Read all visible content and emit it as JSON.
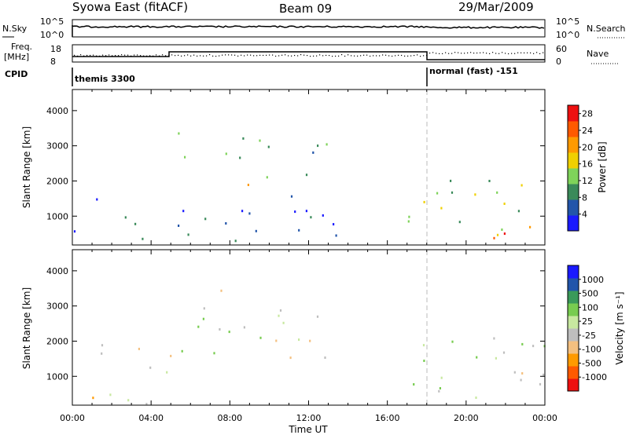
{
  "header": {
    "station": "Syowa East (fitACF)",
    "beam": "Beam 09",
    "date": "29/Mar/2009"
  },
  "aux_labels": {
    "nsky": "N.Sky",
    "freq": "Freq.",
    "freq_unit": "[MHz]",
    "cpid": "CPID",
    "nsearch": "N.Search",
    "nave": "Nave",
    "noise_ticks_left": [
      "10^5",
      "10^0"
    ],
    "noise_ticks_right": [
      "10^5",
      "10^0"
    ],
    "freq_ticks": [
      "18",
      "8"
    ],
    "nave_ticks": [
      "60",
      "0"
    ],
    "cpid_segments": [
      {
        "label": "themis 3300",
        "start_hour": 0,
        "end_hour": 18
      },
      {
        "label": "normal (fast) -151",
        "start_hour": 18,
        "end_hour": 24
      }
    ]
  },
  "colors": {
    "power_scale": [
      "#1a1aff",
      "#2255aa",
      "#3a8a5a",
      "#7fd35a",
      "#f0d000",
      "#ff9a00",
      "#ff5a00",
      "#ee1010"
    ],
    "velocity_scale": [
      "#ee1010",
      "#ff5a00",
      "#ff9a00",
      "#f4c080",
      "#bebebe",
      "#c8e8a0",
      "#78cc50",
      "#3a9a5a",
      "#2255aa",
      "#1a1aff"
    ]
  },
  "chart_data": [
    {
      "type": "heatmap",
      "panel": "power",
      "xlabel": "",
      "ylabel": "Slant Range [km]",
      "xlim": [
        0,
        24
      ],
      "ylim": [
        180,
        4600
      ],
      "yticks": [
        "1000",
        "2000",
        "3000",
        "4000"
      ],
      "colorbar": {
        "label": "Power [dB]",
        "ticks": [
          "4",
          "8",
          "12",
          "16",
          "20",
          "24",
          "28"
        ],
        "range": [
          0,
          30
        ]
      },
      "echo_regions": [
        {
          "hours": [
            4.5,
            9.5
          ],
          "range_km": [
            2500,
            3500
          ],
          "level": 10
        },
        {
          "hours": [
            7.5,
            12.5
          ],
          "range_km": [
            1700,
            2300
          ],
          "level": 14
        },
        {
          "hours": [
            8.5,
            13.0
          ],
          "range_km": [
            2700,
            3500
          ],
          "level": 11
        },
        {
          "hours": [
            0.0,
            14.0
          ],
          "range_km": [
            200,
            1600
          ],
          "level": 6
        },
        {
          "hours": [
            16.5,
            18.5
          ],
          "range_km": [
            250,
            450
          ],
          "level": 18
        },
        {
          "hours": [
            17.0,
            24.0
          ],
          "range_km": [
            400,
            2300
          ],
          "level": 12
        },
        {
          "hours": [
            20.0,
            24.0
          ],
          "range_km": [
            400,
            1400
          ],
          "level": 22
        }
      ]
    },
    {
      "type": "heatmap",
      "panel": "velocity",
      "xlabel": "Time UT",
      "ylabel": "Slant Range [km]",
      "xlim": [
        0,
        24
      ],
      "xticks": [
        "00:00",
        "04:00",
        "08:00",
        "12:00",
        "16:00",
        "20:00",
        "00:00"
      ],
      "ylim": [
        180,
        4600
      ],
      "yticks": [
        "1000",
        "2000",
        "3000",
        "4000"
      ],
      "colorbar": {
        "label": "Velocity [m s⁻¹]",
        "ticks": [
          "-1000",
          "-500",
          "-100",
          "-25",
          "25",
          "100",
          "500",
          "1000"
        ],
        "range": [
          -1200,
          1200
        ]
      },
      "echo_regions": [
        {
          "hours": [
            4.5,
            13.0
          ],
          "range_km": [
            1500,
            3500
          ],
          "velocity": 0
        },
        {
          "hours": [
            0.0,
            5.0
          ],
          "range_km": [
            200,
            2000
          ],
          "velocity": -300
        },
        {
          "hours": [
            17.0,
            24.0
          ],
          "range_km": [
            300,
            2300
          ],
          "velocity": 200
        },
        {
          "hours": [
            20.0,
            24.0
          ],
          "range_km": [
            400,
            1400
          ],
          "velocity": -100
        }
      ]
    }
  ]
}
